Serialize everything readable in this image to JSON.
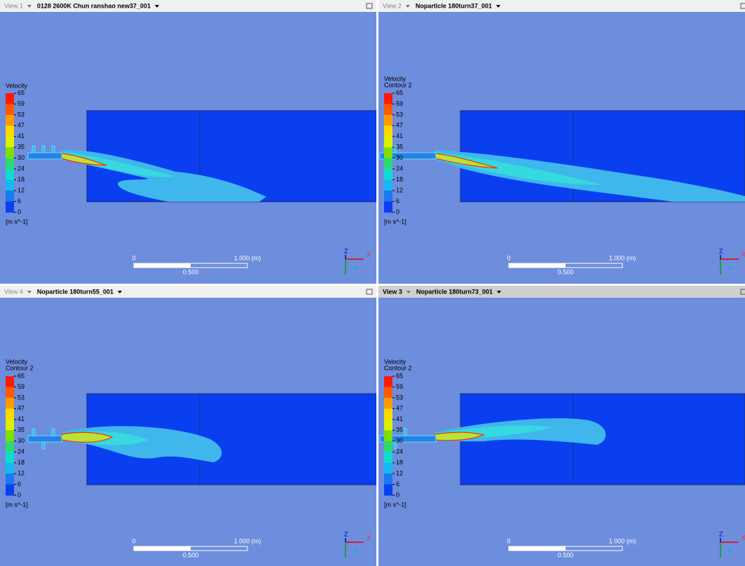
{
  "views": [
    {
      "label": "View 1",
      "title": "0128 2600K Chun ranshao new37_001",
      "legend_title": "Velocity"
    },
    {
      "label": "View 2",
      "title": "Noparticle 180turn37_001",
      "legend_title": "Velocity",
      "legend_subtitle": "Contour 2"
    },
    {
      "label": "View 4",
      "title": "Noparticle 180turn55_001",
      "legend_title": "Velocity",
      "legend_subtitle": "Contour 2"
    },
    {
      "label": "View 3",
      "title": "Noparticle 180turn73_001",
      "legend_title": "Velocity",
      "legend_subtitle": "Contour 2"
    }
  ],
  "legend": {
    "ticks": [
      65,
      59,
      53,
      47,
      41,
      35,
      30,
      24,
      18,
      12,
      6,
      0
    ],
    "unit": "[m s^-1]"
  },
  "scale": {
    "start": "0",
    "end": "1.000 (m)",
    "mid": "0.500"
  },
  "axes": {
    "x": "X",
    "z": "Z"
  }
}
